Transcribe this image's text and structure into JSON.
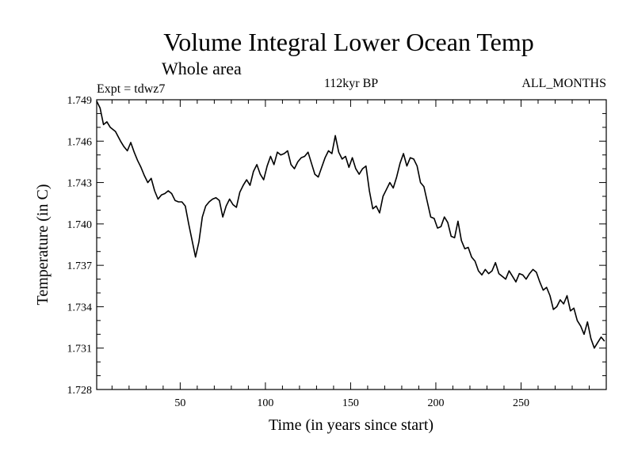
{
  "colors": {
    "line": "#000000",
    "axis": "#000000",
    "background": "#ffffff"
  },
  "chart_data": {
    "type": "line",
    "title": "Volume Integral Lower Ocean Temp",
    "subtitle": "Whole area",
    "annotations": {
      "experiment": "Expt = tdwz7",
      "period": "112kyr BP",
      "months": "ALL_MONTHS"
    },
    "xlabel": "Time (in years since start)",
    "ylabel": "Temperature (in C)",
    "xlim": [
      1,
      300
    ],
    "ylim": [
      1.728,
      1.749
    ],
    "x_ticks": [
      "50",
      "100",
      "150",
      "200",
      "250"
    ],
    "y_ticks": [
      "1.728",
      "1.731",
      "1.734",
      "1.737",
      "1.740",
      "1.743",
      "1.746",
      "1.749"
    ],
    "grid": false,
    "series": [
      {
        "x": [
          1,
          3,
          5,
          7,
          9,
          12,
          15,
          17,
          19,
          21,
          23,
          25,
          27,
          29,
          31,
          33,
          35,
          37,
          39,
          41,
          43,
          45,
          47,
          49,
          51,
          53,
          55,
          57,
          59,
          61,
          63,
          65,
          67,
          69,
          71,
          73,
          75,
          77,
          79,
          81,
          83,
          85,
          87,
          89,
          91,
          93,
          95,
          97,
          99,
          101,
          103,
          105,
          107,
          109,
          111,
          113,
          115,
          117,
          119,
          121,
          123,
          125,
          127,
          129,
          131,
          133,
          135,
          137,
          139,
          141,
          143,
          145,
          147,
          149,
          151,
          153,
          155,
          157,
          159,
          161,
          163,
          165,
          167,
          169,
          171,
          173,
          175,
          177,
          179,
          181,
          183,
          185,
          187,
          189,
          191,
          193,
          195,
          197,
          199,
          201,
          203,
          205,
          207,
          209,
          211,
          213,
          215,
          217,
          219,
          221,
          223,
          225,
          227,
          229,
          231,
          233,
          235,
          237,
          239,
          241,
          243,
          245,
          247,
          249,
          251,
          253,
          255,
          257,
          259,
          261,
          263,
          265,
          267,
          269,
          271,
          273,
          275,
          277,
          279,
          281,
          283,
          285,
          287,
          289,
          291,
          293,
          295,
          297,
          299
        ],
        "values": [
          1.7489,
          1.7484,
          1.7472,
          1.7474,
          1.747,
          1.7467,
          1.746,
          1.7456,
          1.7453,
          1.7459,
          1.7452,
          1.7446,
          1.7441,
          1.7435,
          1.743,
          1.7433,
          1.7424,
          1.7418,
          1.7421,
          1.7422,
          1.7424,
          1.7422,
          1.7417,
          1.7416,
          1.7416,
          1.7413,
          1.74,
          1.7388,
          1.7376,
          1.7387,
          1.7405,
          1.7413,
          1.7416,
          1.7418,
          1.7419,
          1.7417,
          1.7405,
          1.7413,
          1.7418,
          1.7414,
          1.7412,
          1.7423,
          1.7428,
          1.7432,
          1.7428,
          1.7438,
          1.7443,
          1.7436,
          1.7432,
          1.7442,
          1.7449,
          1.7443,
          1.7452,
          1.745,
          1.7451,
          1.7453,
          1.7443,
          1.744,
          1.7445,
          1.7448,
          1.7449,
          1.7452,
          1.7444,
          1.7436,
          1.7434,
          1.7441,
          1.7448,
          1.7453,
          1.7451,
          1.7464,
          1.7452,
          1.7447,
          1.7449,
          1.7441,
          1.7448,
          1.744,
          1.7436,
          1.744,
          1.7442,
          1.7424,
          1.7411,
          1.7413,
          1.7408,
          1.742,
          1.7425,
          1.743,
          1.7426,
          1.7434,
          1.7444,
          1.7451,
          1.7442,
          1.7448,
          1.7447,
          1.7442,
          1.743,
          1.7427,
          1.7416,
          1.7405,
          1.7404,
          1.7397,
          1.7398,
          1.7405,
          1.7401,
          1.7391,
          1.739,
          1.7402,
          1.7388,
          1.7382,
          1.7383,
          1.7376,
          1.7373,
          1.7366,
          1.7363,
          1.7367,
          1.7364,
          1.7366,
          1.7372,
          1.7364,
          1.7362,
          1.736,
          1.7366,
          1.7362,
          1.7358,
          1.7364,
          1.7363,
          1.736,
          1.7364,
          1.7367,
          1.7365,
          1.7358,
          1.7352,
          1.7354,
          1.7348,
          1.7338,
          1.734,
          1.7345,
          1.7342,
          1.7348,
          1.7337,
          1.7339,
          1.733,
          1.7326,
          1.732,
          1.7329,
          1.7317,
          1.731,
          1.7314,
          1.7318,
          1.7315
        ]
      }
    ]
  }
}
